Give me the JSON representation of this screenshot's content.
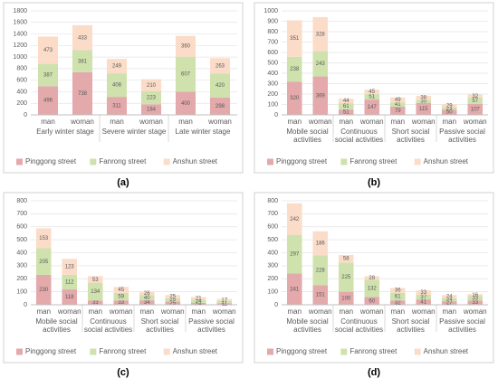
{
  "chart_data": [
    {
      "type": "bar",
      "stacked": true,
      "label": "(a)",
      "grid": true,
      "legend": "bottom",
      "categories": [
        "man",
        "woman",
        "man",
        "woman",
        "man",
        "woman"
      ],
      "groups": [
        "Early winter stage",
        "Severe winter stage",
        "Late winter stage"
      ],
      "ylim": [
        0,
        1800
      ],
      "yticks": [
        0,
        200,
        400,
        600,
        800,
        1000,
        1200,
        1400,
        1600,
        1800
      ],
      "series": [
        {
          "name": "Pinggong street",
          "color": "#e3a9ab",
          "values": [
            496,
            738,
            311,
            184,
            400,
            298
          ]
        },
        {
          "name": "Fanrong street",
          "color": "#cfe2ad",
          "values": [
            387,
            381,
            408,
            223,
            607,
            420
          ]
        },
        {
          "name": "Anshun street",
          "color": "#fbdcc8",
          "values": [
            473,
            433,
            249,
            210,
            360,
            263
          ]
        }
      ]
    },
    {
      "type": "bar",
      "stacked": true,
      "label": "(b)",
      "grid": true,
      "legend": "bottom",
      "categories": [
        "man",
        "woman",
        "man",
        "woman",
        "man",
        "woman",
        "man",
        "woman"
      ],
      "groups": [
        "Mobile social activities",
        "Continuous social activities",
        "Short social activities",
        "Passive social activities"
      ],
      "ylim": [
        0,
        1000
      ],
      "yticks": [
        0,
        100,
        200,
        300,
        400,
        500,
        600,
        700,
        800,
        900,
        1000
      ],
      "series": [
        {
          "name": "Pinggong street",
          "color": "#e3a9ab",
          "values": [
            320,
            369,
            51,
            147,
            79,
            115,
            50,
            107
          ]
        },
        {
          "name": "Fanrong street",
          "color": "#cfe2ad",
          "values": [
            238,
            243,
            61,
            51,
            41,
            30,
            23,
            57
          ]
        },
        {
          "name": "Anshun street",
          "color": "#fbdcc8",
          "values": [
            351,
            328,
            44,
            45,
            49,
            38,
            29,
            32
          ]
        }
      ]
    },
    {
      "type": "bar",
      "stacked": true,
      "label": "(c)",
      "grid": true,
      "legend": "bottom",
      "categories": [
        "man",
        "woman",
        "man",
        "woman",
        "man",
        "woman",
        "man",
        "woman"
      ],
      "groups": [
        "Mobile social activities",
        "Continuous social activities",
        "Short social activities",
        "Passive social activities"
      ],
      "ylim": [
        0,
        800
      ],
      "yticks": [
        0,
        100,
        200,
        300,
        400,
        500,
        600,
        700,
        800
      ],
      "series": [
        {
          "name": "Pinggong street",
          "color": "#e3a9ab",
          "values": [
            230,
            118,
            33,
            33,
            34,
            25,
            14,
            11
          ]
        },
        {
          "name": "Fanrong street",
          "color": "#cfe2ad",
          "values": [
            205,
            112,
            134,
            59,
            40,
            25,
            24,
            17
          ]
        },
        {
          "name": "Anshun street",
          "color": "#fbdcc8",
          "values": [
            153,
            123,
            53,
            45,
            26,
            25,
            21,
            17
          ]
        }
      ]
    },
    {
      "type": "bar",
      "stacked": true,
      "label": "(d)",
      "grid": true,
      "legend": "bottom",
      "categories": [
        "man",
        "woman",
        "man",
        "woman",
        "man",
        "woman",
        "man",
        "woman"
      ],
      "groups": [
        "Mobile social activities",
        "Continuous social activities",
        "Short social activities",
        "Passive social activities"
      ],
      "ylim": [
        0,
        800
      ],
      "yticks": [
        0,
        100,
        200,
        300,
        400,
        500,
        600,
        700,
        800
      ],
      "series": [
        {
          "name": "Pinggong street",
          "color": "#e3a9ab",
          "values": [
            241,
            151,
            100,
            60,
            32,
            41,
            27,
            33
          ]
        },
        {
          "name": "Fanrong street",
          "color": "#cfe2ad",
          "values": [
            297,
            228,
            225,
            132,
            61,
            37,
            24,
            33
          ]
        },
        {
          "name": "Anshun street",
          "color": "#fbdcc8",
          "values": [
            242,
            186,
            58,
            28,
            36,
            33,
            24,
            16
          ]
        }
      ]
    }
  ]
}
